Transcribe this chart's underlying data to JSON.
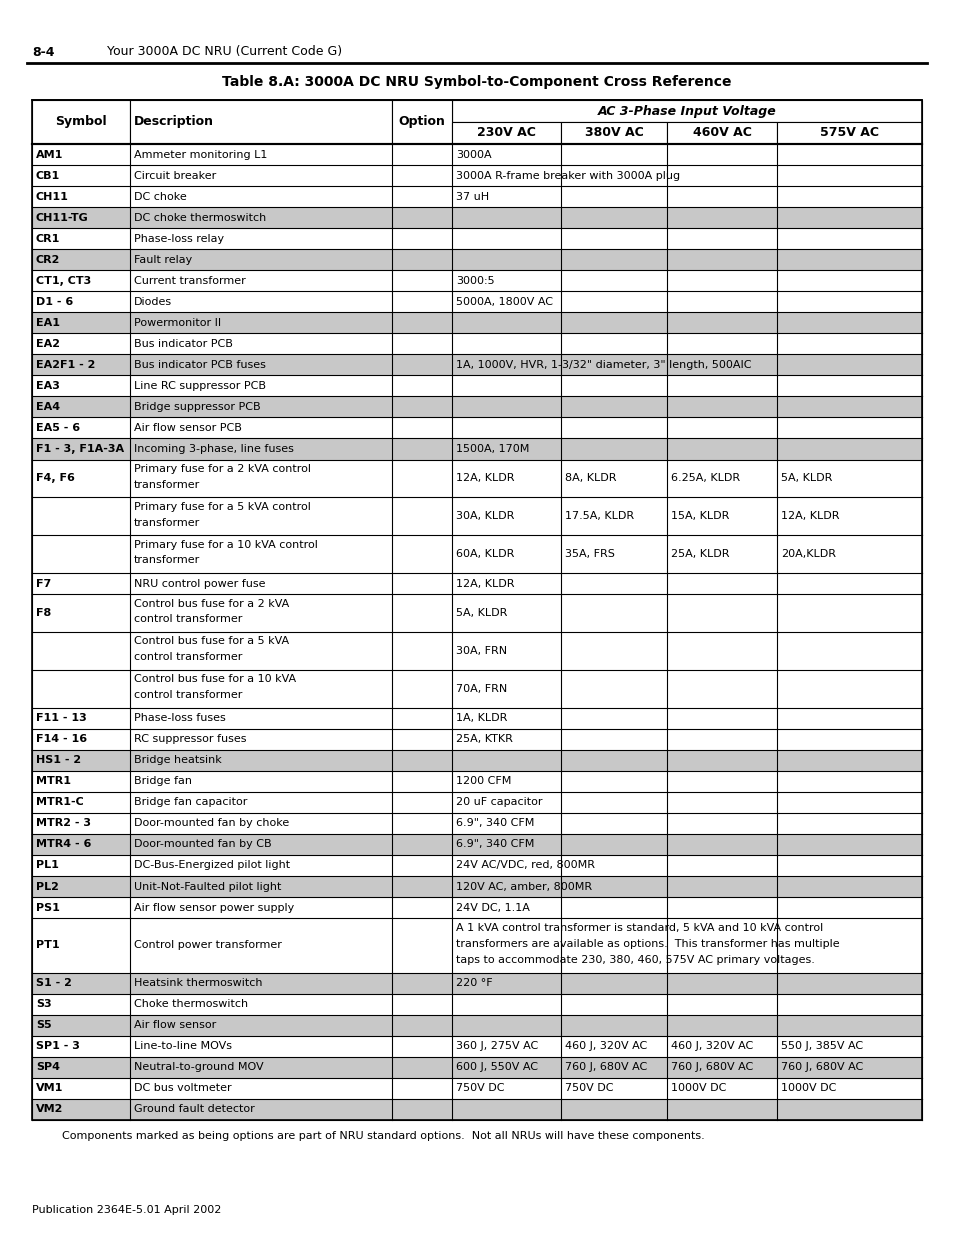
{
  "page_header_num": "8-4",
  "page_header_title": "Your 3000A DC NRU (Current Code G)",
  "table_title": "Table 8.A: 3000A DC NRU Symbol-to-Component Cross Reference",
  "ac_header": "AC 3-Phase Input Voltage",
  "col_headers": [
    "Symbol",
    "Description",
    "Option",
    "230V AC",
    "380V AC",
    "460V AC",
    "575V AC"
  ],
  "footer_note": "Components marked as being options are part of NRU standard options.  Not all NRUs will have these components.",
  "pub_footer": "Publication 2364E-5.01 April 2002",
  "rows": [
    {
      "sym": "AM1",
      "desc": "Ammeter monitoring L1",
      "opt": "",
      "v230": "3000A",
      "v380": "",
      "v460": "",
      "v575": "",
      "span": true,
      "gray": false
    },
    {
      "sym": "CB1",
      "desc": "Circuit breaker",
      "opt": "",
      "v230": "3000A R-frame breaker with 3000A plug",
      "v380": "",
      "v460": "",
      "v575": "",
      "span": true,
      "gray": false
    },
    {
      "sym": "CH11",
      "desc": "DC choke",
      "opt": "",
      "v230": "37 uH",
      "v380": "",
      "v460": "",
      "v575": "",
      "span": true,
      "gray": false
    },
    {
      "sym": "CH11-TG",
      "desc": "DC choke thermoswitch",
      "opt": "",
      "v230": "",
      "v380": "",
      "v460": "",
      "v575": "",
      "span": true,
      "gray": true
    },
    {
      "sym": "CR1",
      "desc": "Phase-loss relay",
      "opt": "",
      "v230": "",
      "v380": "",
      "v460": "",
      "v575": "",
      "span": true,
      "gray": false
    },
    {
      "sym": "CR2",
      "desc": "Fault relay",
      "opt": "",
      "v230": "",
      "v380": "",
      "v460": "",
      "v575": "",
      "span": true,
      "gray": true
    },
    {
      "sym": "CT1, CT3",
      "desc": "Current transformer",
      "opt": "",
      "v230": "3000:5",
      "v380": "",
      "v460": "",
      "v575": "",
      "span": true,
      "gray": false
    },
    {
      "sym": "D1 - 6",
      "desc": "Diodes",
      "opt": "",
      "v230": "5000A, 1800V AC",
      "v380": "",
      "v460": "",
      "v575": "",
      "span": true,
      "gray": false
    },
    {
      "sym": "EA1",
      "desc": "Powermonitor II",
      "opt": "",
      "v230": "",
      "v380": "",
      "v460": "",
      "v575": "",
      "span": true,
      "gray": true
    },
    {
      "sym": "EA2",
      "desc": "Bus indicator PCB",
      "opt": "",
      "v230": "",
      "v380": "",
      "v460": "",
      "v575": "",
      "span": true,
      "gray": false
    },
    {
      "sym": "EA2F1 - 2",
      "desc": "Bus indicator PCB fuses",
      "opt": "",
      "v230": "1A, 1000V, HVR, 1-3/32\" diameter, 3\" length, 500AIC",
      "v380": "",
      "v460": "",
      "v575": "",
      "span": true,
      "gray": true
    },
    {
      "sym": "EA3",
      "desc": "Line RC suppressor PCB",
      "opt": "",
      "v230": "",
      "v380": "",
      "v460": "",
      "v575": "",
      "span": true,
      "gray": false
    },
    {
      "sym": "EA4",
      "desc": "Bridge suppressor PCB",
      "opt": "",
      "v230": "",
      "v380": "",
      "v460": "",
      "v575": "",
      "span": true,
      "gray": true
    },
    {
      "sym": "EA5 - 6",
      "desc": "Air flow sensor PCB",
      "opt": "",
      "v230": "",
      "v380": "",
      "v460": "",
      "v575": "",
      "span": true,
      "gray": false
    },
    {
      "sym": "F1 - 3, F1A-3A",
      "desc": "Incoming 3-phase, line fuses",
      "opt": "",
      "v230": "1500A, 170M",
      "v380": "",
      "v460": "",
      "v575": "",
      "span": true,
      "gray": true
    },
    {
      "sym": "F4, F6",
      "desc": "Primary fuse for a 2 kVA control\ntransformer",
      "opt": "",
      "v230": "12A, KLDR",
      "v380": "8A, KLDR",
      "v460": "6.25A, KLDR",
      "v575": "5A, KLDR",
      "span": false,
      "gray": false
    },
    {
      "sym": "",
      "desc": "Primary fuse for a 5 kVA control\ntransformer",
      "opt": "",
      "v230": "30A, KLDR",
      "v380": "17.5A, KLDR",
      "v460": "15A, KLDR",
      "v575": "12A, KLDR",
      "span": false,
      "gray": false
    },
    {
      "sym": "",
      "desc": "Primary fuse for a 10 kVA control\ntransformer",
      "opt": "",
      "v230": "60A, KLDR",
      "v380": "35A, FRS",
      "v460": "25A, KLDR",
      "v575": "20A,KLDR",
      "span": false,
      "gray": false
    },
    {
      "sym": "F7",
      "desc": "NRU control power fuse",
      "opt": "",
      "v230": "12A, KLDR",
      "v380": "",
      "v460": "",
      "v575": "",
      "span": true,
      "gray": false
    },
    {
      "sym": "F8",
      "desc": "Control bus fuse for a 2 kVA\ncontrol transformer",
      "opt": "",
      "v230": "5A, KLDR",
      "v380": "",
      "v460": "",
      "v575": "",
      "span": true,
      "gray": false
    },
    {
      "sym": "",
      "desc": "Control bus fuse for a 5 kVA\ncontrol transformer",
      "opt": "",
      "v230": "30A, FRN",
      "v380": "",
      "v460": "",
      "v575": "",
      "span": true,
      "gray": false
    },
    {
      "sym": "",
      "desc": "Control bus fuse for a 10 kVA\ncontrol transformer",
      "opt": "",
      "v230": "70A, FRN",
      "v380": "",
      "v460": "",
      "v575": "",
      "span": true,
      "gray": false
    },
    {
      "sym": "F11 - 13",
      "desc": "Phase-loss fuses",
      "opt": "",
      "v230": "1A, KLDR",
      "v380": "",
      "v460": "",
      "v575": "",
      "span": true,
      "gray": false
    },
    {
      "sym": "F14 - 16",
      "desc": "RC suppressor fuses",
      "opt": "",
      "v230": "25A, KTKR",
      "v380": "",
      "v460": "",
      "v575": "",
      "span": true,
      "gray": false
    },
    {
      "sym": "HS1 - 2",
      "desc": "Bridge heatsink",
      "opt": "",
      "v230": "",
      "v380": "",
      "v460": "",
      "v575": "",
      "span": true,
      "gray": true
    },
    {
      "sym": "MTR1",
      "desc": "Bridge fan",
      "opt": "",
      "v230": "1200 CFM",
      "v380": "",
      "v460": "",
      "v575": "",
      "span": true,
      "gray": false
    },
    {
      "sym": "MTR1-C",
      "desc": "Bridge fan capacitor",
      "opt": "",
      "v230": "20 uF capacitor",
      "v380": "",
      "v460": "",
      "v575": "",
      "span": true,
      "gray": false
    },
    {
      "sym": "MTR2 - 3",
      "desc": "Door-mounted fan by choke",
      "opt": "",
      "v230": "6.9\", 340 CFM",
      "v380": "",
      "v460": "",
      "v575": "",
      "span": true,
      "gray": false
    },
    {
      "sym": "MTR4 - 6",
      "desc": "Door-mounted fan by CB",
      "opt": "",
      "v230": "6.9\", 340 CFM",
      "v380": "",
      "v460": "",
      "v575": "",
      "span": true,
      "gray": true
    },
    {
      "sym": "PL1",
      "desc": "DC-Bus-Energized pilot light",
      "opt": "",
      "v230": "24V AC/VDC, red, 800MR",
      "v380": "",
      "v460": "",
      "v575": "",
      "span": true,
      "gray": false
    },
    {
      "sym": "PL2",
      "desc": "Unit-Not-Faulted pilot light",
      "opt": "",
      "v230": "120V AC, amber, 800MR",
      "v380": "",
      "v460": "",
      "v575": "",
      "span": true,
      "gray": true
    },
    {
      "sym": "PS1",
      "desc": "Air flow sensor power supply",
      "opt": "",
      "v230": "24V DC, 1.1A",
      "v380": "",
      "v460": "",
      "v575": "",
      "span": true,
      "gray": false
    },
    {
      "sym": "PT1",
      "desc": "Control power transformer",
      "opt": "",
      "v230": "A 1 kVA control transformer is standard, 5 kVA and 10 kVA control\ntransformers are available as options.  This transformer has multiple\ntaps to accommodate 230, 380, 460, 575V AC primary voltages.",
      "v380": "",
      "v460": "",
      "v575": "",
      "span": true,
      "gray": false
    },
    {
      "sym": "S1 - 2",
      "desc": "Heatsink thermoswitch",
      "opt": "",
      "v230": "220 °F",
      "v380": "",
      "v460": "",
      "v575": "",
      "span": true,
      "gray": true
    },
    {
      "sym": "S3",
      "desc": "Choke thermoswitch",
      "opt": "",
      "v230": "",
      "v380": "",
      "v460": "",
      "v575": "",
      "span": true,
      "gray": false
    },
    {
      "sym": "S5",
      "desc": "Air flow sensor",
      "opt": "",
      "v230": "",
      "v380": "",
      "v460": "",
      "v575": "",
      "span": true,
      "gray": true
    },
    {
      "sym": "SP1 - 3",
      "desc": "Line-to-line MOVs",
      "opt": "",
      "v230": "360 J, 275V AC",
      "v380": "460 J, 320V AC",
      "v460": "460 J, 320V AC",
      "v575": "550 J, 385V AC",
      "span": false,
      "gray": false
    },
    {
      "sym": "SP4",
      "desc": "Neutral-to-ground MOV",
      "opt": "",
      "v230": "600 J, 550V AC",
      "v380": "760 J, 680V AC",
      "v460": "760 J, 680V AC",
      "v575": "760 J, 680V AC",
      "span": false,
      "gray": true
    },
    {
      "sym": "VM1",
      "desc": "DC bus voltmeter",
      "opt": "",
      "v230": "750V DC",
      "v380": "750V DC",
      "v460": "1000V DC",
      "v575": "1000V DC",
      "span": false,
      "gray": false
    },
    {
      "sym": "VM2",
      "desc": "Ground fault detector",
      "opt": "",
      "v230": "",
      "v380": "",
      "v460": "",
      "v575": "",
      "span": true,
      "gray": true
    }
  ]
}
